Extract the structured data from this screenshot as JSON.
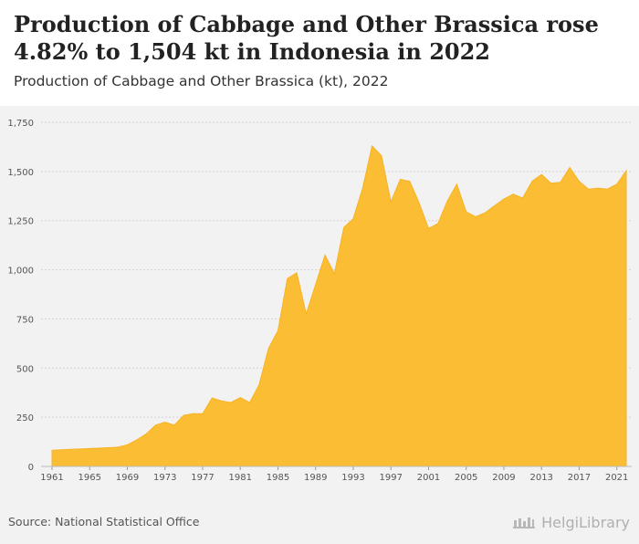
{
  "header": {
    "title": "Production of Cabbage and Other Brassica rose 4.82% to 1,504 kt in Indonesia in 2022",
    "subtitle": "Production of Cabbage and Other Brassica (kt), 2022"
  },
  "footer": {
    "source": "Source: National Statistical Office",
    "brand": "HelgiLibrary"
  },
  "colors": {
    "area": "#fbbd33",
    "area_line": "#f7b324",
    "grid": "#d2d2d2",
    "background": "#f2f2f2"
  },
  "chart_data": {
    "type": "area",
    "title": "Production of Cabbage and Other Brassica (kt), 2022",
    "xlabel": "",
    "ylabel": "",
    "ylim": [
      0,
      1750
    ],
    "yticks": [
      "0",
      "250",
      "500",
      "750",
      "1,000",
      "1,250",
      "1,500",
      "1,750"
    ],
    "xticks": [
      "1961",
      "1965",
      "1969",
      "1973",
      "1977",
      "1981",
      "1985",
      "1989",
      "1993",
      "1997",
      "2001",
      "2005",
      "2009",
      "2013",
      "2017",
      "2021"
    ],
    "grid": true,
    "legend": "none",
    "x": [
      1961,
      1962,
      1963,
      1964,
      1965,
      1966,
      1967,
      1968,
      1969,
      1970,
      1971,
      1972,
      1973,
      1974,
      1975,
      1976,
      1977,
      1978,
      1979,
      1980,
      1981,
      1982,
      1983,
      1984,
      1985,
      1986,
      1987,
      1988,
      1989,
      1990,
      1991,
      1992,
      1993,
      1994,
      1995,
      1996,
      1997,
      1998,
      1999,
      2000,
      2001,
      2002,
      2003,
      2004,
      2005,
      2006,
      2007,
      2008,
      2009,
      2010,
      2011,
      2012,
      2013,
      2014,
      2015,
      2016,
      2017,
      2018,
      2019,
      2020,
      2021,
      2022
    ],
    "values": [
      82,
      85,
      87,
      89,
      91,
      93,
      95,
      98,
      110,
      135,
      165,
      210,
      225,
      210,
      260,
      268,
      268,
      348,
      333,
      325,
      350,
      325,
      415,
      600,
      690,
      955,
      985,
      775,
      925,
      1075,
      980,
      1215,
      1260,
      1415,
      1630,
      1580,
      1345,
      1460,
      1450,
      1340,
      1210,
      1235,
      1350,
      1435,
      1295,
      1270,
      1290,
      1325,
      1360,
      1385,
      1365,
      1450,
      1485,
      1440,
      1445,
      1520,
      1450,
      1410,
      1415,
      1410,
      1435,
      1504
    ]
  }
}
